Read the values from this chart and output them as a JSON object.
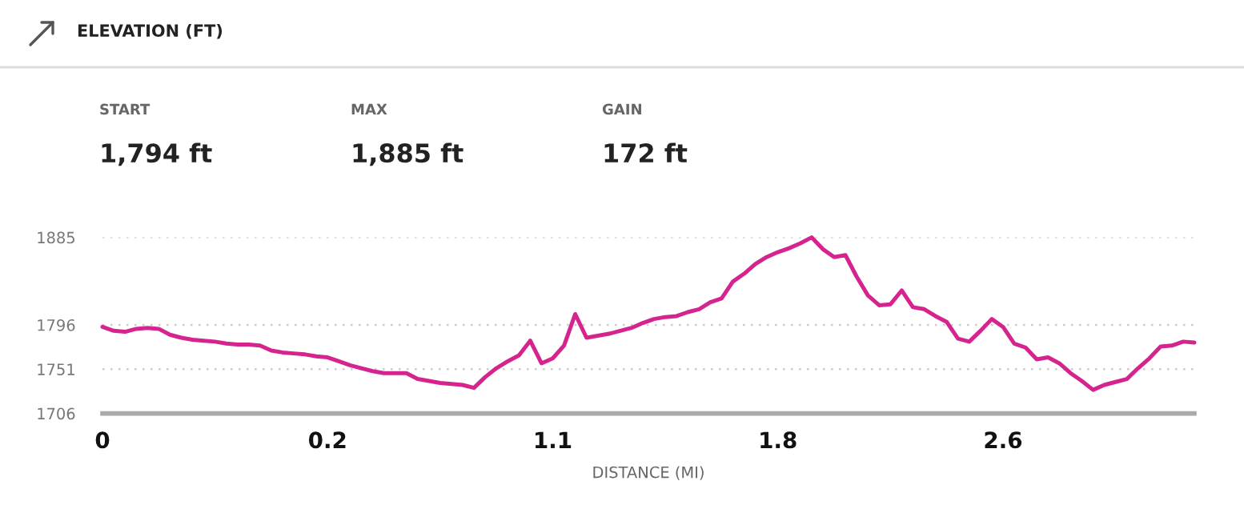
{
  "chart_data": {
    "type": "line",
    "title": "ELEVATION (FT)",
    "xlabel": "DISTANCE (MI)",
    "annotations": [
      "START",
      "1,794 ft",
      "MAX",
      "1,885 ft",
      "GAIN",
      "172 ft"
    ],
    "categories": [
      "0",
      null,
      null,
      null,
      null,
      null,
      null,
      null,
      null,
      null,
      null,
      null,
      null,
      null,
      null,
      null,
      null,
      null,
      null,
      null,
      "0.2",
      null,
      null,
      null,
      null,
      null,
      null,
      null,
      null,
      null,
      null,
      null,
      null,
      null,
      null,
      null,
      null,
      null,
      null,
      null,
      "1.1",
      null,
      null,
      null,
      null,
      null,
      null,
      null,
      null,
      null,
      null,
      null,
      null,
      null,
      null,
      null,
      null,
      null,
      null,
      null,
      "1.8",
      null,
      null,
      null,
      null,
      null,
      null,
      null,
      null,
      null,
      null,
      null,
      null,
      null,
      null,
      null,
      null,
      null,
      null,
      null,
      "2.6",
      null,
      null,
      null,
      null,
      null,
      null,
      null,
      null,
      null,
      null,
      null,
      null,
      null,
      null,
      null,
      null,
      null
    ],
    "ylim": [
      1706,
      1885
    ],
    "yticks": [
      1706,
      1751,
      1796,
      1885
    ],
    "grid": "y",
    "marker": "none",
    "line_style": "solid",
    "series": [
      {
        "color": "#d6248f",
        "values": [
          1794,
          1790,
          1789,
          1792,
          1793,
          1792,
          1786,
          1783,
          1781,
          1780,
          1779,
          1777,
          1776,
          1776,
          1775,
          1770,
          1768,
          1767,
          1766,
          1764,
          1763,
          1759,
          1755,
          1752,
          1749,
          1747,
          1747,
          1747,
          1741,
          1739,
          1737,
          1736,
          1735,
          1732,
          1743,
          1752,
          1759,
          1765,
          1780,
          1757,
          1762,
          1775,
          1807,
          1783,
          1785,
          1787,
          1790,
          1793,
          1798,
          1802,
          1804,
          1805,
          1809,
          1812,
          1819,
          1823,
          1840,
          1848,
          1858,
          1865,
          1870,
          1874,
          1879,
          1885,
          1873,
          1865,
          1867,
          1845,
          1826,
          1816,
          1817,
          1831,
          1814,
          1812,
          1805,
          1799,
          1782,
          1779,
          1790,
          1802,
          1794,
          1777,
          1773,
          1761,
          1763,
          1757,
          1747,
          1739,
          1730,
          1735,
          1738,
          1741,
          1752,
          1762,
          1774,
          1775,
          1779,
          1778
        ]
      }
    ]
  }
}
